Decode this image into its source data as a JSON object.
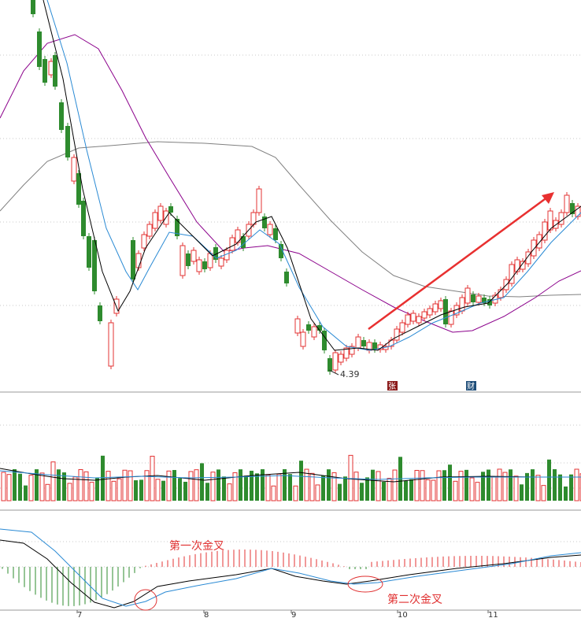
{
  "chart_data": [
    {
      "type": "candlestick",
      "panel": "price",
      "up_color": "#e33333",
      "down_color": "#2e8b2e",
      "low_annotation": "4.39",
      "badges": [
        {
          "text": "张",
          "color": "#8b1a1a"
        },
        {
          "text": "财",
          "color": "#1f4e79"
        }
      ],
      "x_ticks": [
        "7",
        "8",
        "9",
        "10",
        "11"
      ],
      "ma_colors": {
        "ma5": "#000000",
        "ma10": "#2a8ad4",
        "ma30": "#8b008b",
        "ma60": "#808080"
      },
      "trend_arrow_color": "#e83030"
    },
    {
      "type": "bar",
      "panel": "volume",
      "up_color": "#e33333",
      "down_color": "#2e8b2e"
    },
    {
      "type": "line",
      "panel": "macd",
      "annotations": [
        "第一次金叉",
        "第二次金叉"
      ],
      "dif_color": "#000000",
      "dea_color": "#2a8ad4",
      "bar_up_color": "#e33333",
      "bar_down_color": "#2e8b2e",
      "annotation_color": "#e03030"
    }
  ]
}
